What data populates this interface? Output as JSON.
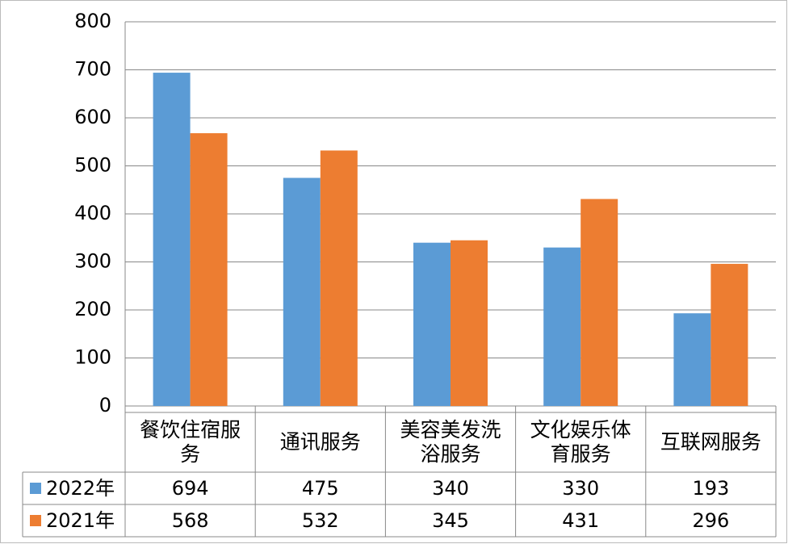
{
  "chart_data": {
    "type": "bar",
    "categories": [
      "餐饮住宿服务",
      "通讯服务",
      "美容美发洗浴服务",
      "文化娱乐体育服务",
      "互联网服务"
    ],
    "series": [
      {
        "name": "2022年",
        "color": "#5b9bd5",
        "values": [
          694,
          475,
          340,
          330,
          193
        ]
      },
      {
        "name": "2021年",
        "color": "#ed7d31",
        "values": [
          568,
          532,
          345,
          431,
          296
        ]
      }
    ],
    "ylim": [
      0,
      800
    ],
    "yticks": [
      0,
      100,
      200,
      300,
      400,
      500,
      600,
      700,
      800
    ],
    "grid": true
  }
}
